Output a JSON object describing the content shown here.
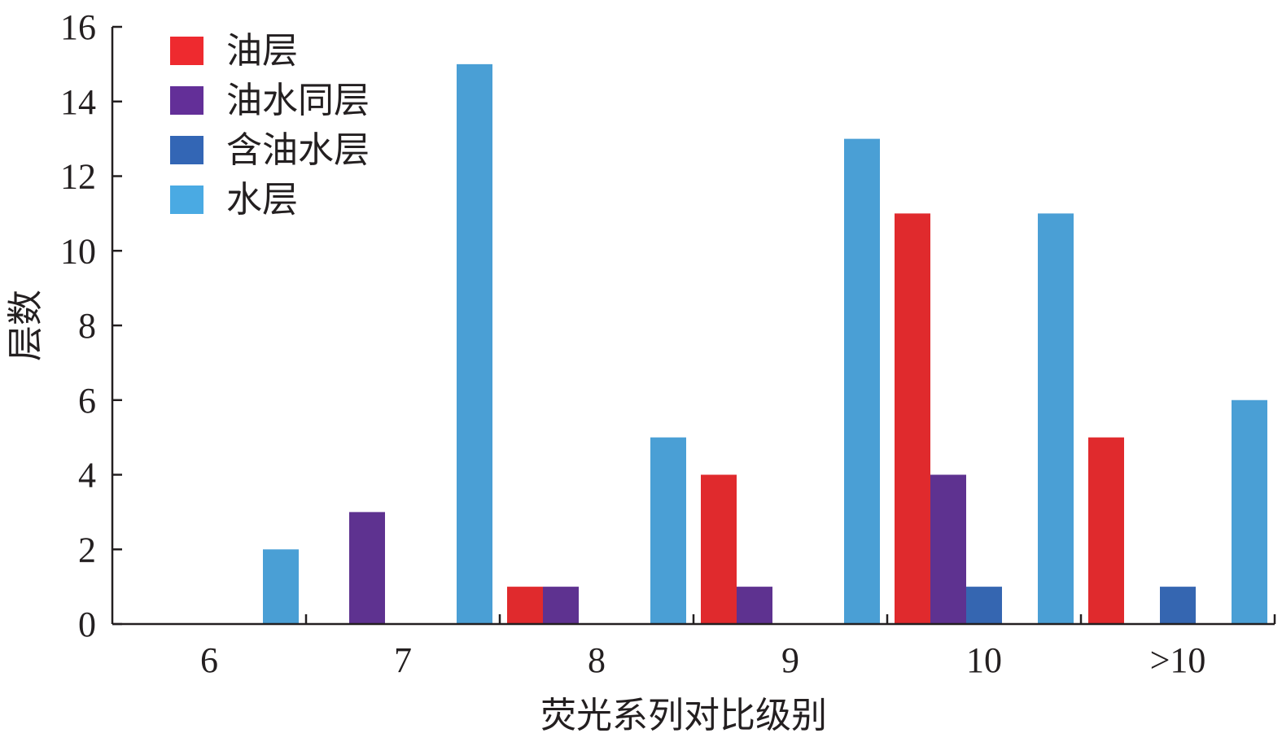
{
  "chart_data": {
    "type": "bar",
    "title": "",
    "xlabel": "荧光系列对比级别",
    "ylabel": "层数",
    "categories": [
      "6",
      "7",
      "8",
      "9",
      "10",
      ">10"
    ],
    "ylim": [
      0,
      16
    ],
    "yticks": [
      0,
      2,
      4,
      6,
      8,
      10,
      12,
      14,
      16
    ],
    "grid": false,
    "legend_position": "top-left",
    "series": [
      {
        "name": "油层",
        "color": "#e02a2d",
        "legend_color": "#ee2a2f",
        "values": [
          0,
          0,
          1,
          4,
          11,
          5
        ]
      },
      {
        "name": "油水同层",
        "color": "#5e3290",
        "legend_color": "#632f98",
        "values": [
          0,
          3,
          1,
          1,
          4,
          0
        ]
      },
      {
        "name": "含油水层",
        "color": "#3566b1",
        "legend_color": "#3366b5",
        "values": [
          0,
          0,
          0,
          0,
          1,
          1
        ]
      },
      {
        "name": "水层",
        "color": "#4a9fd5",
        "legend_color": "#4aaae3",
        "values": [
          2,
          15,
          5,
          13,
          11,
          6
        ]
      }
    ]
  }
}
